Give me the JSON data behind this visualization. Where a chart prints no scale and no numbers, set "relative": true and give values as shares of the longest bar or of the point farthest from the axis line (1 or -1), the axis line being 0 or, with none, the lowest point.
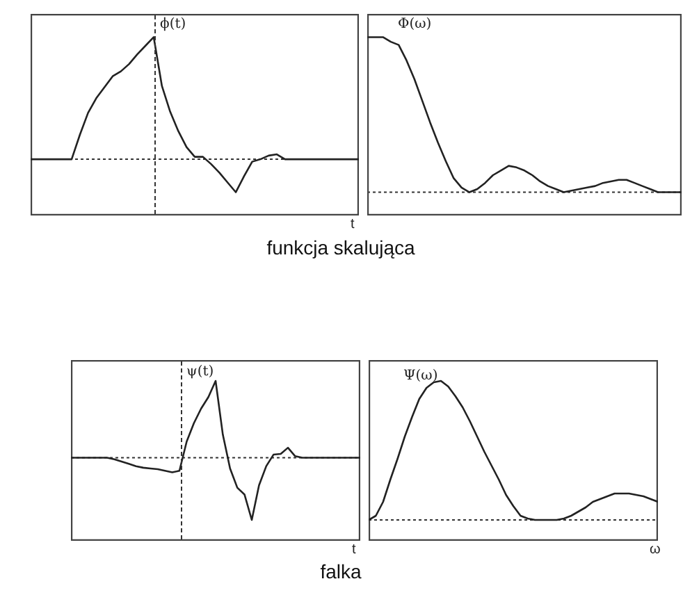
{
  "chart_data": [
    {
      "type": "line",
      "relative": true,
      "xlabel": "t",
      "categories": [
        null,
        null,
        null,
        null,
        null,
        null,
        null,
        null,
        null,
        null,
        null,
        null,
        null,
        null,
        null,
        null,
        null,
        null,
        null,
        null,
        null,
        null,
        null,
        null,
        null,
        null,
        null,
        null,
        null,
        null,
        null,
        null,
        null,
        null,
        null,
        null,
        null,
        null,
        null,
        null,
        null
      ],
      "series": [
        {
          "color": "#222222",
          "values": [
            0,
            0,
            0,
            0,
            0,
            0,
            0.2,
            0.38,
            0.5,
            0.59,
            0.68,
            0.72,
            0.78,
            0.86,
            0.93,
            1,
            0.6,
            0.39,
            0.23,
            0.1,
            0.02,
            0.02,
            -0.04,
            -0.11,
            -0.19,
            -0.27,
            -0.14,
            -0.02,
            0,
            0.03,
            0.04,
            0,
            0,
            0,
            0,
            0,
            0,
            0,
            0,
            0,
            0
          ]
        }
      ],
      "annotations": [
        "ϕ(t)",
        "funkcja skalująca"
      ]
    },
    {
      "type": "line",
      "relative": true,
      "categories": [
        null,
        null,
        null,
        null,
        null,
        null,
        null,
        null,
        null,
        null,
        null,
        null,
        null,
        null,
        null,
        null,
        null,
        null,
        null,
        null,
        null,
        null,
        null,
        null,
        null,
        null,
        null,
        null,
        null,
        null,
        null,
        null,
        null,
        null,
        null,
        null,
        null,
        null,
        null,
        null,
        null
      ],
      "series": [
        {
          "color": "#222222",
          "values": [
            1,
            1,
            1,
            0.97,
            0.95,
            0.85,
            0.73,
            0.59,
            0.45,
            0.32,
            0.2,
            0.09,
            0.03,
            0,
            0.02,
            0.06,
            0.11,
            0.14,
            0.17,
            0.16,
            0.14,
            0.11,
            0.07,
            0.04,
            0.02,
            0,
            0.01,
            0.02,
            0.03,
            0.04,
            0.06,
            0.07,
            0.08,
            0.08,
            0.06,
            0.04,
            0.02,
            0,
            0,
            0,
            0
          ]
        }
      ],
      "annotations": [
        "Φ(ω)"
      ]
    },
    {
      "type": "line",
      "relative": true,
      "xlabel": "t",
      "categories": [
        null,
        null,
        null,
        null,
        null,
        null,
        null,
        null,
        null,
        null,
        null,
        null,
        null,
        null,
        null,
        null,
        null,
        null,
        null,
        null,
        null,
        null,
        null,
        null,
        null,
        null,
        null,
        null,
        null,
        null,
        null,
        null,
        null,
        null,
        null,
        null,
        null,
        null,
        null,
        null,
        null
      ],
      "series": [
        {
          "color": "#222222",
          "values": [
            0,
            0,
            0,
            0,
            0,
            0,
            -0.02,
            -0.05,
            -0.08,
            -0.11,
            -0.13,
            -0.14,
            -0.15,
            -0.17,
            -0.19,
            -0.17,
            0.21,
            0.45,
            0.64,
            0.79,
            1,
            0.3,
            -0.14,
            -0.39,
            -0.48,
            -0.81,
            -0.36,
            -0.11,
            0.04,
            0.05,
            0.13,
            0.02,
            0,
            0,
            0,
            0,
            0,
            0,
            0,
            0,
            0
          ]
        }
      ],
      "annotations": [
        "ψ(t)",
        "falka"
      ]
    },
    {
      "type": "line",
      "relative": true,
      "xlabel": "ω",
      "categories": [
        null,
        null,
        null,
        null,
        null,
        null,
        null,
        null,
        null,
        null,
        null,
        null,
        null,
        null,
        null,
        null,
        null,
        null,
        null,
        null,
        null,
        null,
        null,
        null,
        null,
        null,
        null,
        null,
        null,
        null,
        null,
        null,
        null,
        null,
        null,
        null,
        null,
        null,
        null,
        null,
        null
      ],
      "series": [
        {
          "color": "#222222",
          "values": [
            0,
            0.03,
            0.13,
            0.29,
            0.44,
            0.6,
            0.74,
            0.87,
            0.95,
            0.99,
            1,
            0.96,
            0.89,
            0.81,
            0.71,
            0.6,
            0.49,
            0.39,
            0.29,
            0.18,
            0.1,
            0.03,
            0.01,
            0,
            0,
            0,
            0,
            0.01,
            0.03,
            0.06,
            0.09,
            0.13,
            0.15,
            0.17,
            0.19,
            0.19,
            0.19,
            0.18,
            0.17,
            0.15,
            0.13
          ]
        }
      ],
      "annotations": [
        "Ψ(ω)"
      ]
    }
  ]
}
